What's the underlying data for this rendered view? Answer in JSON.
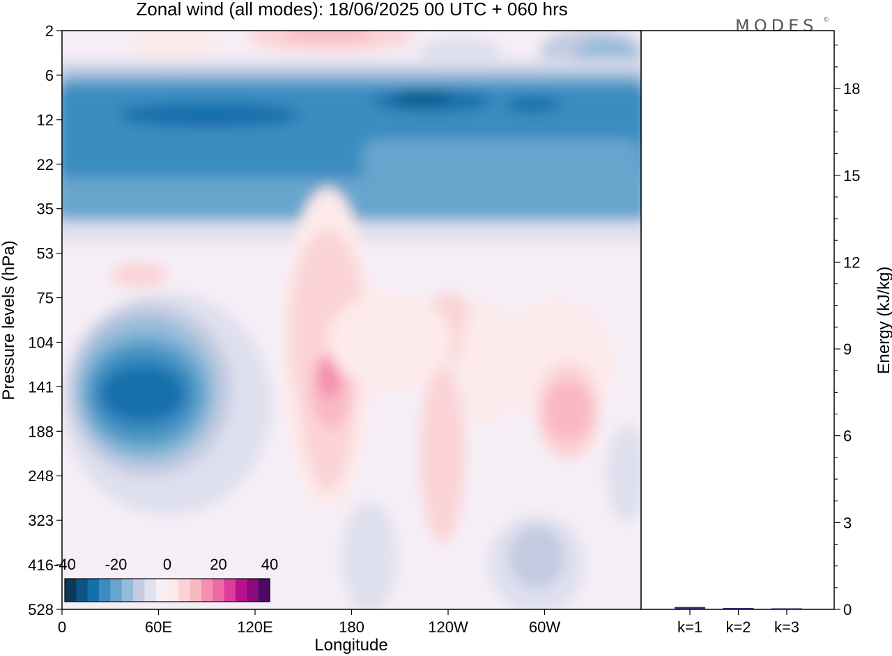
{
  "title": "Zonal wind (all modes):  18/06/2025  00 UTC  + 060 hrs",
  "logo_text": "MODES",
  "logo_mark": "©",
  "chart_data": [
    {
      "type": "heatmap",
      "title": "Zonal wind (all modes):  18/06/2025  00 UTC  + 060 hrs",
      "xlabel": "Longitude",
      "ylabel": "Pressure levels (hPa)",
      "x_ticks": [
        "0",
        "60E",
        "120E",
        "180",
        "120W",
        "60W"
      ],
      "y_ticks": [
        "2",
        "6",
        "12",
        "22",
        "35",
        "53",
        "75",
        "104",
        "141",
        "188",
        "248",
        "323",
        "416",
        "528"
      ],
      "y_scale": "level-index (inverted, top = 2 hPa)",
      "colorbar": {
        "tick_labels": [
          "-40",
          "-20",
          "0",
          "20",
          "40"
        ],
        "range": [
          -40,
          40
        ],
        "colors": [
          "#0b3a5c",
          "#0d5586",
          "#1270ac",
          "#3b8cc0",
          "#68a5cd",
          "#95bcd9",
          "#c3cbe1",
          "#dfe0ee",
          "#f7eef5",
          "#fdeaea",
          "#fbd3d6",
          "#f9b8c2",
          "#f48fb1",
          "#ee6aa7",
          "#db3d9b",
          "#b8118a",
          "#880a7c",
          "#4d0a65"
        ]
      },
      "features": [
        {
          "region": "upper band 8-30 hPa, all longitudes",
          "value": -25
        },
        {
          "region": "core near 110W, ~9 hPa",
          "value": -40
        },
        {
          "region": "core near 30-70E, ~140 hPa",
          "value": -30
        },
        {
          "region": "maximum near 165E, ~130 hPa",
          "value": 15
        },
        {
          "region": "maximum near 45W, ~150 hPa",
          "value": 12
        },
        {
          "region": "positive band near 150E, top",
          "value": 10
        }
      ]
    },
    {
      "type": "bar",
      "categories": [
        "k=1",
        "k=2",
        "k=3"
      ],
      "values": [
        0.08,
        0.05,
        0.03
      ],
      "ylabel": "Energy (kJ/kg)",
      "ylim": [
        0,
        20
      ],
      "y_ticks": [
        "0",
        "3",
        "6",
        "9",
        "12",
        "15",
        "18"
      ],
      "y_tick_values": [
        0,
        3,
        6,
        9,
        12,
        15,
        18
      ],
      "bar_color": "#2b2b6b"
    }
  ]
}
